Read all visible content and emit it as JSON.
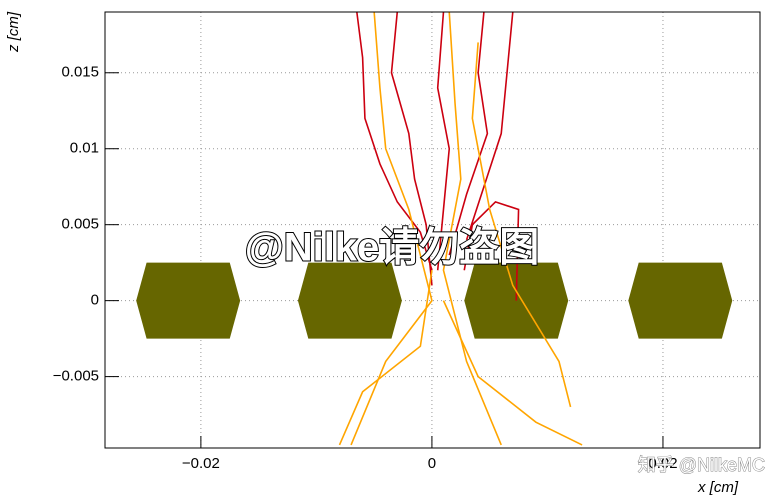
{
  "chart_data": {
    "type": "line",
    "x_label": "x [cm]",
    "y_label": "z [cm]",
    "xlim": [
      -0.0283,
      0.0284
    ],
    "ylim": [
      -0.0097,
      0.019
    ],
    "xticks": [
      {
        "value": -0.02,
        "label": "−0.02"
      },
      0,
      0.02
    ],
    "yticks": [
      {
        "value": -0.005,
        "label": "−0.005"
      },
      0,
      0.005,
      0.01,
      0.015
    ],
    "grid": true,
    "hexagons": {
      "color": "#666600",
      "x": [
        -0.0211,
        -0.0071,
        0.0073,
        0.0215
      ],
      "width": 0.009,
      "height": 0.005
    },
    "series": [
      {
        "color": "#cc0010",
        "x": [
          -0.0065,
          -0.006,
          -0.0058,
          -0.0045,
          -0.003,
          -0.001,
          0.0
        ],
        "y": [
          0.019,
          0.016,
          0.012,
          0.009,
          0.0065,
          0.0045,
          0.002
        ]
      },
      {
        "color": "#cc0010",
        "x": [
          -0.003,
          -0.0035,
          -0.002,
          -0.0015,
          -0.0005,
          0.0
        ],
        "y": [
          0.019,
          0.015,
          0.011,
          0.008,
          0.005,
          0.001
        ]
      },
      {
        "color": "#cc0010",
        "x": [
          0.001,
          0.0005,
          0.0015,
          0.001,
          0.0005
        ],
        "y": [
          0.019,
          0.014,
          0.01,
          0.006,
          0.002
        ]
      },
      {
        "color": "#cc0010",
        "x": [
          0.0045,
          0.004,
          0.0048,
          0.003,
          0.0015
        ],
        "y": [
          0.019,
          0.015,
          0.011,
          0.007,
          0.003
        ]
      },
      {
        "color": "#cc0010",
        "x": [
          0.007,
          0.0065,
          0.006,
          0.0045,
          0.003
        ],
        "y": [
          0.019,
          0.015,
          0.011,
          0.0075,
          0.004
        ]
      },
      {
        "color": "#cc0010",
        "x": [
          0.0028,
          0.0035,
          0.0055,
          0.0075,
          0.0073
        ],
        "y": [
          0.002,
          0.005,
          0.0065,
          0.006,
          0.0
        ]
      },
      {
        "color": "#ffa500",
        "x": [
          -0.005,
          -0.0045,
          -0.004,
          -0.002,
          0.0,
          -0.004,
          -0.007
        ],
        "y": [
          0.019,
          0.014,
          0.01,
          0.006,
          0.0,
          -0.004,
          -0.0095
        ]
      },
      {
        "color": "#ffa500",
        "x": [
          0.0015,
          0.002,
          0.0025,
          0.001,
          0.003,
          0.006
        ],
        "y": [
          0.019,
          0.013,
          0.008,
          0.002,
          -0.004,
          -0.0095
        ]
      },
      {
        "color": "#ffa500",
        "x": [
          0.004,
          0.0035,
          0.005,
          0.007,
          0.011,
          0.012
        ],
        "y": [
          0.017,
          0.012,
          0.006,
          0.001,
          -0.004,
          -0.007
        ]
      },
      {
        "color": "#ffa500",
        "x": [
          0.0,
          -0.001,
          -0.006,
          -0.008
        ],
        "y": [
          0.002,
          -0.003,
          -0.006,
          -0.0095
        ]
      },
      {
        "color": "#ffa500",
        "x": [
          0.001,
          0.004,
          0.009,
          0.013
        ],
        "y": [
          0.0,
          -0.005,
          -0.008,
          -0.0095
        ]
      }
    ],
    "annotations": [
      "@Nilke请勿盗图",
      "知乎 @NilkeMC"
    ]
  }
}
